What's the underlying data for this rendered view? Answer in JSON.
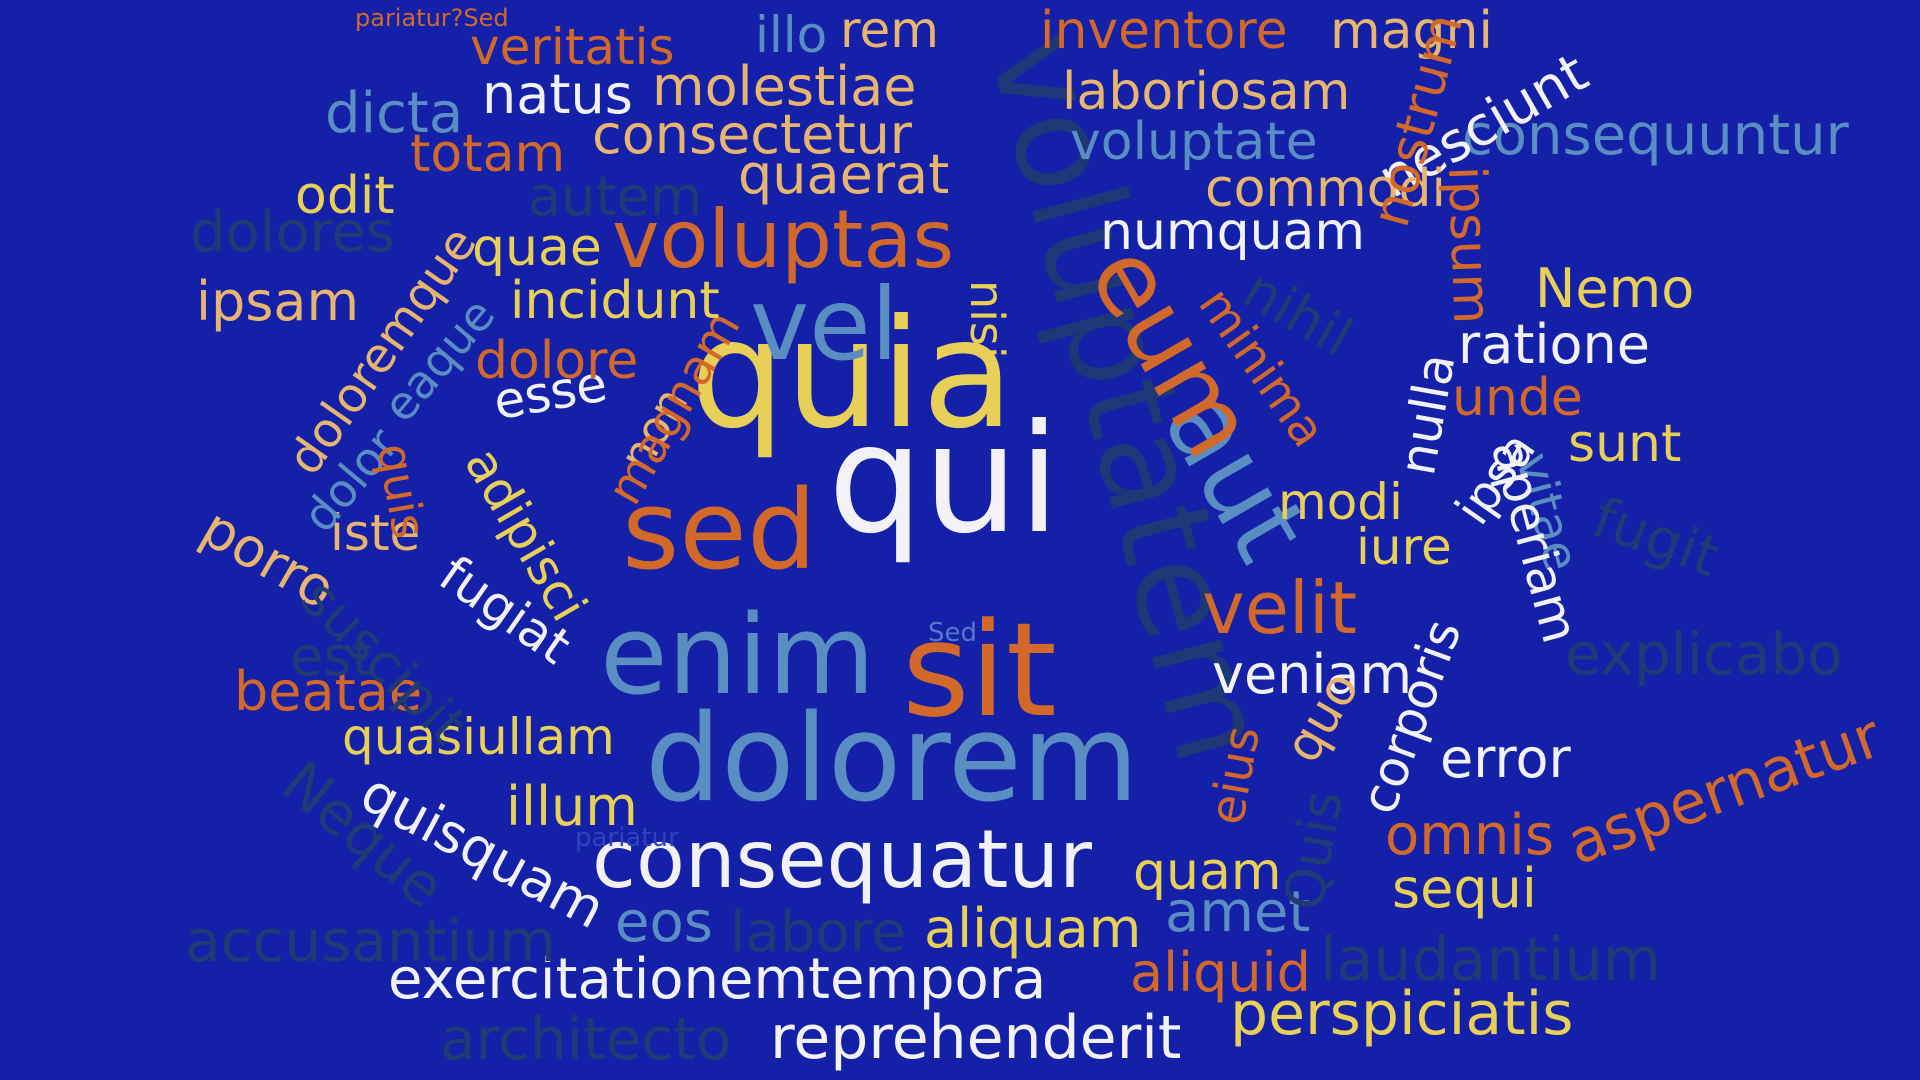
{
  "palette": {
    "background": "#1420a8",
    "yellow": "#e8cf58",
    "white": "#f2f2f6",
    "orange": "#d2692a",
    "steel_blue": "#5a8dc2",
    "tan": "#e7b56f",
    "navy": "#1f3a74"
  },
  "words": [
    "quia",
    "qui",
    "sed",
    "sit",
    "enim",
    "dolorem",
    "voluptatem",
    "consequatur",
    "aut",
    "eum",
    "vel",
    "voluptas",
    "velit",
    "veniam",
    "error",
    "aspernatur",
    "omnis",
    "sequi",
    "quam",
    "aliquam",
    "aliquid",
    "perspiciatis",
    "reprehenderit",
    "exercitationemtempora",
    "eos",
    "labore",
    "amet",
    "laudantium",
    "accusantium",
    "architecto",
    "illum",
    "quisquam",
    "quasiullam",
    "beatae",
    "est",
    "Neque",
    "porro",
    "iste",
    "fugiat",
    "adipisci",
    "non",
    "magnam",
    "esse",
    "dolor",
    "quis",
    "eaque",
    "doloremque",
    "ipsam",
    "dolore",
    "incidunt",
    "quae",
    "odit",
    "dolores",
    "totam",
    "autem",
    "dicta",
    "natus",
    "consectetur",
    "quaerat",
    "molestiae",
    "veritatis",
    "illo",
    "rem",
    "pariatur?Sed",
    "inventore",
    "magni",
    "laboriosam",
    "voluptate",
    "consequuntur",
    "nesciunt",
    "commodi",
    "ipsum",
    "numquam",
    "nostrum",
    "nihil",
    "minima",
    "Nemo",
    "ratione",
    "unde",
    "nulla",
    "sunt",
    "modi",
    "ipsa",
    "vitae",
    "fugit",
    "iure",
    "aperiam",
    "corporis",
    "quo",
    "eius",
    "Quis",
    "explicabo",
    "nisi",
    "suscipit",
    "pariatur",
    "Sed"
  ]
}
